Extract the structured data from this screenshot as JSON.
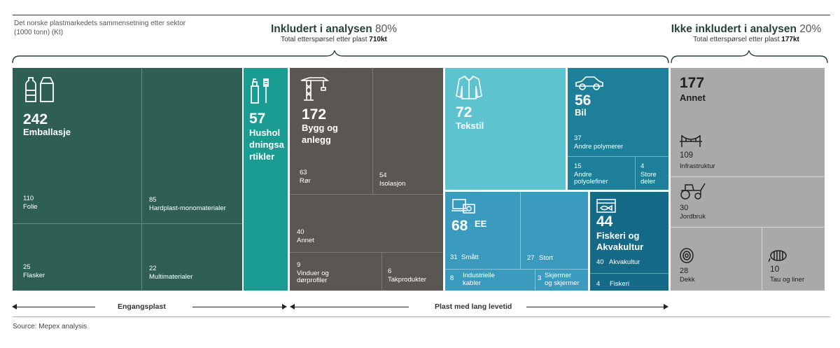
{
  "figure": {
    "subtitle_line1": "Det norske plastmarkedets sammensetning etter sektor",
    "subtitle_line2": "(1000 tonn) (Kt)",
    "included": {
      "title": "Inkludert i analysen",
      "pct": "80%",
      "sub": "Total etterspørsel etter plast ",
      "sub_bold": "710kt"
    },
    "excluded": {
      "title": "Ikke inkludert i analysen",
      "pct": "20%",
      "sub": "Total etterspørsel etter plast ",
      "sub_bold": "177kt"
    },
    "arrow_left": "Engangsplast",
    "arrow_right": "Plast med lang levetid",
    "source": "Source: Mepex analysis"
  },
  "colors": {
    "emballasje": "#2e5e54",
    "husholdning": "#1a9c92",
    "bygg": "#5a5753",
    "tekstil": "#5cc3cf",
    "bil": "#1d7f9a",
    "ee": "#3a9bbf",
    "fiskeri": "#156a87",
    "annet": "#a9a9a9"
  },
  "chart_data": {
    "type": "treemap",
    "unit": "1000 tonn (Kt)",
    "groups": [
      {
        "name": "Emballasje",
        "value": 242,
        "children": [
          {
            "name": "Folie",
            "value": 110
          },
          {
            "name": "Hardplast-monomaterialer",
            "value": 85
          },
          {
            "name": "Flasker",
            "value": 25
          },
          {
            "name": "Multimaterialer",
            "value": 22
          }
        ]
      },
      {
        "name": "Husholdningsartikler",
        "value": 57,
        "label_lines": [
          "Hushol",
          "dningsa",
          "rtikler"
        ],
        "children": []
      },
      {
        "name": "Bygg og anlegg",
        "value": 172,
        "label_lines": [
          "Bygg og",
          "anlegg"
        ],
        "children": [
          {
            "name": "Rør",
            "value": 63
          },
          {
            "name": "Isolasjon",
            "value": 54
          },
          {
            "name": "Annet",
            "value": 40
          },
          {
            "name": "Vinduer og dørprofiler",
            "label_lines": [
              "Vinduer og",
              "dørprofiler"
            ],
            "value": 9
          },
          {
            "name": "Takprodukter",
            "value": 6
          }
        ]
      },
      {
        "name": "Tekstil",
        "value": 72,
        "children": []
      },
      {
        "name": "Bil",
        "value": 56,
        "children": [
          {
            "name": "Andre polymerer",
            "value": 37
          },
          {
            "name": "Andre polyolefiner",
            "label_lines": [
              "Andre",
              "polyolefiner"
            ],
            "value": 15
          },
          {
            "name": "Store deler",
            "label_lines": [
              "Store",
              "deler"
            ],
            "value": 4
          }
        ]
      },
      {
        "name": "EE",
        "value": 68,
        "children": [
          {
            "name": "Smått",
            "value": 31
          },
          {
            "name": "Stort",
            "value": 27
          },
          {
            "name": "Industrielle kabler",
            "label_lines": [
              "Industrielle",
              "kabler"
            ],
            "value": 8
          },
          {
            "name": "Skjermer og skjermer",
            "label_lines": [
              "Skjermer",
              "og skjermer"
            ],
            "value": 3
          }
        ]
      },
      {
        "name": "Fiskeri og Akvakultur",
        "value": 44,
        "label_lines": [
          "Fiskeri og",
          "Akvakultur"
        ],
        "children": [
          {
            "name": "Akvakultur",
            "value": 40
          },
          {
            "name": "Fiskeri",
            "value": 4
          }
        ]
      },
      {
        "name": "Annet",
        "value": 177,
        "included": false,
        "children": [
          {
            "name": "Infrastruktur",
            "value": 109
          },
          {
            "name": "Jordbruk",
            "value": 30
          },
          {
            "name": "Dekk",
            "value": 28
          },
          {
            "name": "Tau og liner",
            "value": 10
          }
        ]
      }
    ]
  }
}
